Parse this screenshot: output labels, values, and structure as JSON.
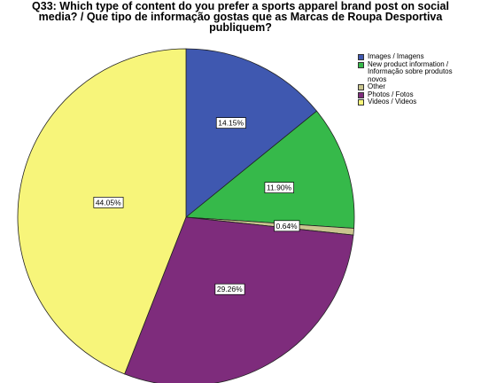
{
  "title_lines": [
    "Q33: Which type of content do you prefer a sports apparel brand post on social",
    "media? / Que tipo de informação gostas que as Marcas de Roupa Desportiva",
    "publiquem?"
  ],
  "chart_data": {
    "type": "pie",
    "title": "Q33: Which type of content do you prefer a sports apparel brand post on social media? / Que tipo de informação gostas que as Marcas de Roupa Desportiva publiquem?",
    "legend_position": "top-right",
    "start_angle_deg": 0,
    "direction": "clockwise",
    "series": [
      {
        "name": "Images / Imagens",
        "value": 14.15,
        "label": "14.15%",
        "color": "#3f58b0"
      },
      {
        "name": "New product information / Informação sobre produtos novos",
        "value": 11.9,
        "label": "11.90%",
        "color": "#36b94a"
      },
      {
        "name": "Other",
        "value": 0.64,
        "label": "0.64%",
        "color": "#c9c58e"
      },
      {
        "name": "Photos / Fotos",
        "value": 29.26,
        "label": "29.26%",
        "color": "#7e2c7c"
      },
      {
        "name": "Videos / Videos",
        "value": 44.05,
        "label": "44.05%",
        "color": "#f7f57a"
      }
    ]
  },
  "legend": [
    {
      "text": "Images / Imagens",
      "color": "#3f58b0"
    },
    {
      "text": "New product information /\nInformação sobre produtos\nnovos",
      "color": "#36b94a"
    },
    {
      "text": "Other",
      "color": "#c9c58e"
    },
    {
      "text": "Photos / Fotos",
      "color": "#7e2c7c"
    },
    {
      "text": "Videos / Videos",
      "color": "#f7f57a"
    }
  ]
}
